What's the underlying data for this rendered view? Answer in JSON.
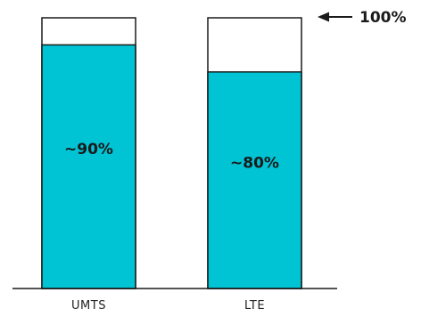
{
  "chart_data": {
    "type": "bar",
    "categories": [
      "UMTS",
      "LTE"
    ],
    "values": [
      90,
      80
    ],
    "value_labels": [
      "~90%",
      "~80%"
    ],
    "ylim": [
      0,
      100
    ],
    "reference": {
      "value": 100,
      "label": "100%"
    },
    "title": "",
    "xlabel": "",
    "ylabel": "",
    "grid": false,
    "colors": {
      "fill": "#00c3d4",
      "outline": "#1a1a1a",
      "background": "#ffffff"
    }
  }
}
